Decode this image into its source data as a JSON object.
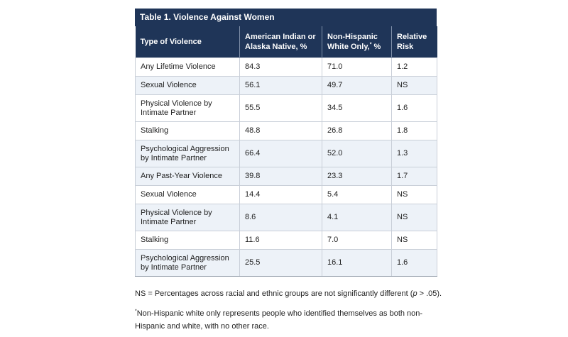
{
  "table": {
    "caption": "Table 1. Violence Against Women",
    "headers": {
      "type": "Type of Violence",
      "aian": "American Indian or Alaska Native, %",
      "white": "Non-Hispanic White Only,",
      "white_sup": "*",
      "white_suffix": " %",
      "risk": "Relative Risk"
    },
    "rows": [
      {
        "type": "Any Lifetime Violence",
        "aian": "84.3",
        "white": "71.0",
        "risk": "1.2"
      },
      {
        "type": "Sexual Violence",
        "aian": "56.1",
        "white": "49.7",
        "risk": "NS"
      },
      {
        "type": "Physical Violence by Intimate Partner",
        "aian": "55.5",
        "white": "34.5",
        "risk": "1.6"
      },
      {
        "type": "Stalking",
        "aian": "48.8",
        "white": "26.8",
        "risk": "1.8"
      },
      {
        "type": "Psychological Aggression by Intimate Partner",
        "aian": "66.4",
        "white": "52.0",
        "risk": "1.3"
      },
      {
        "type": "Any Past-Year Violence",
        "aian": "39.8",
        "white": "23.3",
        "risk": "1.7"
      },
      {
        "type": "Sexual Violence",
        "aian": "14.4",
        "white": "5.4",
        "risk": "NS"
      },
      {
        "type": "Physical Violence by Intimate Partner",
        "aian": "8.6",
        "white": "4.1",
        "risk": "NS"
      },
      {
        "type": "Stalking",
        "aian": "11.6",
        "white": "7.0",
        "risk": "NS"
      },
      {
        "type": "Psychological Aggression by Intimate Partner",
        "aian": "25.5",
        "white": "16.1",
        "risk": "1.6"
      }
    ]
  },
  "notes": {
    "ns_before": "NS = Percentages across racial and ethnic groups are not significantly different (",
    "ns_p": "p",
    "ns_after": " > .05).",
    "footnote_mark": "*",
    "footnote": "Non-Hispanic white only represents people who identified themselves as both non-Hispanic and white, with no other race."
  },
  "colors": {
    "header_bg": "#1f3558",
    "alt_row_bg": "#edf2f8"
  }
}
